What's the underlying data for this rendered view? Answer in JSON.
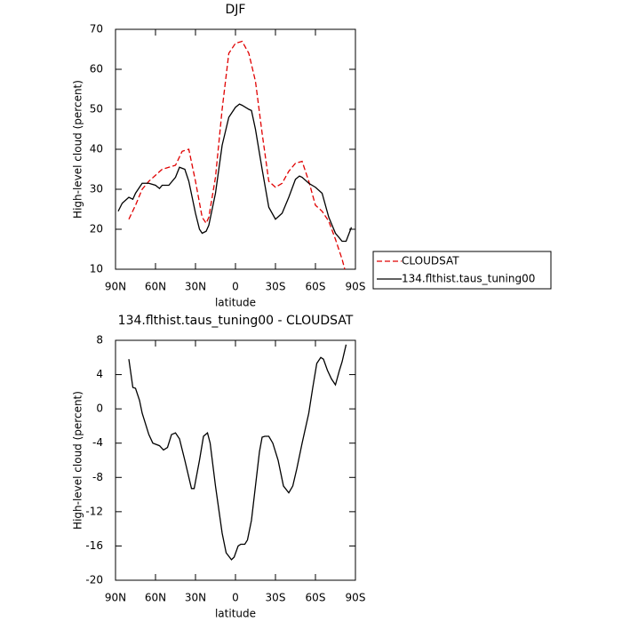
{
  "chart_data": [
    {
      "type": "line",
      "title": "DJF",
      "xlabel": "latitude",
      "ylabel": "High-level cloud (percent)",
      "xlim": [
        90,
        -90
      ],
      "ylim": [
        10,
        70
      ],
      "xticks": [
        {
          "value": 90,
          "label": "90N"
        },
        {
          "value": 60,
          "label": "60N"
        },
        {
          "value": 30,
          "label": "30N"
        },
        0,
        {
          "value": -30,
          "label": "30S"
        },
        {
          "value": -60,
          "label": "60S"
        },
        {
          "value": -90,
          "label": "90S"
        }
      ],
      "yticks": [
        10,
        20,
        30,
        40,
        50,
        60,
        70
      ],
      "legend": "right",
      "series": [
        {
          "name": "CLOUDSAT",
          "color": "#e00000",
          "dash": true,
          "x": [
            80,
            75,
            70,
            65,
            60,
            55,
            50,
            45,
            40,
            35,
            30,
            25,
            22,
            20,
            15,
            10,
            5,
            0,
            -5,
            -10,
            -15,
            -20,
            -25,
            -30,
            -35,
            -40,
            -45,
            -50,
            -55,
            -60,
            -65,
            -70,
            -75,
            -80,
            -82
          ],
          "values": [
            22.5,
            26,
            30,
            32,
            33.5,
            35,
            35.5,
            36,
            39.5,
            40,
            32,
            23,
            21.5,
            23,
            33,
            50,
            64,
            66.5,
            67,
            64,
            57,
            44,
            32,
            30.5,
            31.5,
            34.5,
            36.5,
            37,
            32,
            26,
            24.5,
            22,
            17.5,
            12.5,
            10
          ]
        },
        {
          "name": "134.flthist.taus_tuning00",
          "color": "#000000",
          "dash": false,
          "x": [
            88,
            85,
            80,
            77,
            75,
            70,
            65,
            60,
            57,
            55,
            50,
            45,
            42,
            38,
            35,
            30,
            27,
            25,
            22,
            20,
            15,
            10,
            5,
            0,
            -3,
            -5,
            -10,
            -12,
            -15,
            -20,
            -25,
            -30,
            -35,
            -40,
            -45,
            -48,
            -50,
            -55,
            -60,
            -65,
            -70,
            -75,
            -80,
            -83,
            -87
          ],
          "values": [
            24.5,
            26.5,
            28,
            27.5,
            29,
            31.5,
            31.5,
            31,
            30.2,
            31,
            31,
            33,
            35.5,
            35,
            32,
            24,
            20,
            19,
            19.5,
            21,
            29,
            41,
            48,
            50.5,
            51.3,
            51,
            50,
            49.7,
            45,
            35,
            25.5,
            22.5,
            24,
            28,
            32.5,
            33.3,
            33,
            31.5,
            30.5,
            29,
            23,
            19,
            17,
            17,
            20.5
          ]
        }
      ]
    },
    {
      "type": "line",
      "title": "134.flthist.taus_tuning00 - CLOUDSAT",
      "xlabel": "latitude",
      "ylabel": "High-level cloud (percent)",
      "xlim": [
        90,
        -90
      ],
      "ylim": [
        -20,
        8
      ],
      "xticks": [
        {
          "value": 90,
          "label": "90N"
        },
        {
          "value": 60,
          "label": "60N"
        },
        {
          "value": 30,
          "label": "30N"
        },
        0,
        {
          "value": -30,
          "label": "30S"
        },
        {
          "value": -60,
          "label": "60S"
        },
        {
          "value": -90,
          "label": "90S"
        }
      ],
      "yticks": [
        -20,
        -16,
        -12,
        -8,
        -4,
        0,
        4,
        8
      ],
      "series": [
        {
          "color": "#000000",
          "dash": false,
          "x": [
            80,
            77,
            75,
            72,
            70,
            68,
            65,
            62,
            57,
            54,
            51,
            48,
            45,
            42,
            38,
            33,
            31,
            27,
            24,
            21,
            19,
            15,
            10,
            7,
            3,
            1,
            -2,
            -4,
            -7,
            -9,
            -12,
            -15,
            -18,
            -20,
            -22,
            -25,
            -28,
            -32,
            -36,
            -40,
            -43,
            -46,
            -50,
            -55,
            -58,
            -61,
            -64,
            -66,
            -69,
            -72,
            -75,
            -78,
            -80,
            -83
          ],
          "values": [
            5.8,
            2.5,
            2.4,
            1,
            -0.5,
            -1.5,
            -3,
            -4,
            -4.3,
            -4.8,
            -4.5,
            -3,
            -2.8,
            -3.5,
            -6,
            -9.3,
            -9.3,
            -6,
            -3.2,
            -2.8,
            -4,
            -9,
            -14.5,
            -16.8,
            -17.6,
            -17.3,
            -16,
            -15.8,
            -15.8,
            -15.3,
            -13,
            -9,
            -5,
            -3.3,
            -3.2,
            -3.2,
            -4,
            -6,
            -9,
            -9.8,
            -9,
            -7,
            -4,
            -0.5,
            2.5,
            5.3,
            6,
            5.8,
            4.5,
            3.5,
            2.8,
            4.5,
            5.5,
            7.5
          ]
        }
      ]
    }
  ]
}
